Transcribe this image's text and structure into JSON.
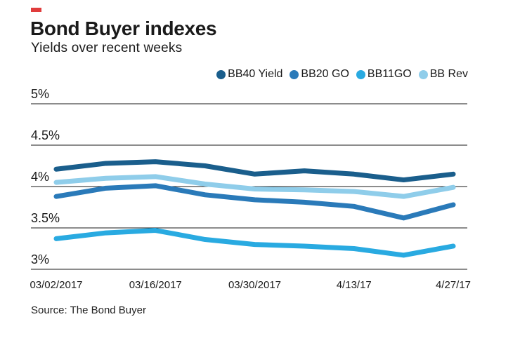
{
  "header": {
    "title": "Bond Buyer indexes",
    "subtitle": "Yields over recent weeks",
    "accent_color": "#e03c3c"
  },
  "source": "Source: The Bond Buyer",
  "chart_data": {
    "type": "line",
    "title": "Bond Buyer indexes",
    "subtitle": "Yields over recent weeks",
    "x": [
      "03/02/2017",
      "03/09/2017",
      "03/16/2017",
      "03/23/2017",
      "03/30/2017",
      "04/06/2017",
      "04/13/2017",
      "04/20/2017",
      "04/27/2017"
    ],
    "xtick_labels": [
      "03/02/2017",
      "03/16/2017",
      "03/30/2017",
      "4/13/17",
      "4/27/17"
    ],
    "xtick_indices": [
      0,
      2,
      4,
      6,
      8
    ],
    "ylim": [
      3,
      5
    ],
    "yticks": [
      5,
      4.5,
      4,
      3.5,
      3
    ],
    "ytick_labels": [
      "5%",
      "4.5%",
      "4%",
      "3.5%",
      "3%"
    ],
    "grid": true,
    "grid_color": "#1a1a1a",
    "text_color": "#1a1a1a",
    "legend_position": "top-right",
    "series": [
      {
        "name": "BB40 Yield",
        "color": "#1a5e8c",
        "values": [
          4.21,
          4.28,
          4.3,
          4.25,
          4.15,
          4.19,
          4.15,
          4.08,
          4.15
        ]
      },
      {
        "name": "BB20 GO",
        "color": "#2a7ab9",
        "values": [
          3.88,
          3.98,
          4.01,
          3.9,
          3.84,
          3.81,
          3.76,
          3.62,
          3.78
        ]
      },
      {
        "name": "BB11GO",
        "color": "#29aae1",
        "values": [
          3.37,
          3.44,
          3.47,
          3.36,
          3.3,
          3.28,
          3.25,
          3.17,
          3.28
        ]
      },
      {
        "name": "BB Rev",
        "color": "#8fcdea",
        "values": [
          4.05,
          4.1,
          4.12,
          4.03,
          3.97,
          3.96,
          3.94,
          3.88,
          3.99
        ]
      }
    ]
  }
}
